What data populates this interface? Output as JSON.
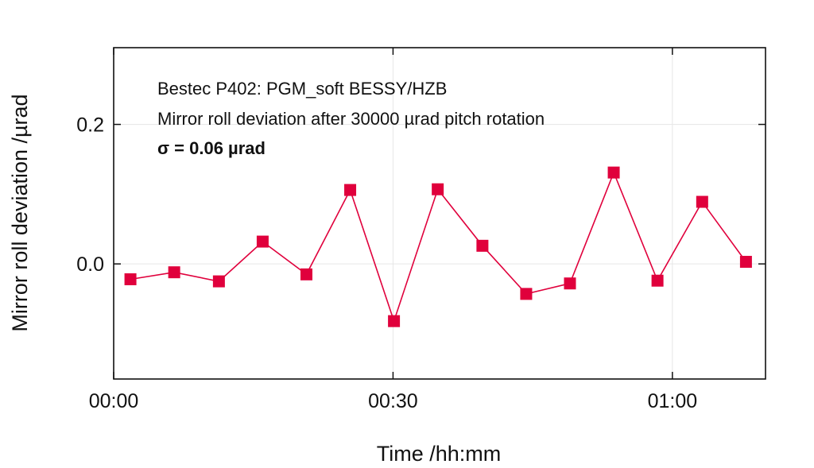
{
  "chart_data": {
    "type": "line",
    "xlabel": "Time /hh:mm",
    "ylabel": "Mirror roll deviation /µrad",
    "x_unit": "minutes",
    "xlim": [
      0,
      70
    ],
    "ylim": [
      -0.165,
      0.31
    ],
    "x_ticks": [
      {
        "value": 0,
        "label": "00:00"
      },
      {
        "value": 30,
        "label": "00:30"
      },
      {
        "value": 60,
        "label": "01:00"
      }
    ],
    "y_ticks": [
      {
        "value": 0.0,
        "label": "0.0"
      },
      {
        "value": 0.2,
        "label": "0.2"
      }
    ],
    "grid": true,
    "annotations": [
      "Bestec P402: PGM_soft BESSY/HZB",
      "Mirror roll deviation after 30000 µrad pitch rotation",
      "σ = 0.06 µrad"
    ],
    "series": [
      {
        "color": "#e0003c",
        "marker": "square",
        "x": [
          1.8,
          6.5,
          11.3,
          16.0,
          20.7,
          25.4,
          30.1,
          34.8,
          39.6,
          44.3,
          49.0,
          53.7,
          58.4,
          63.2,
          67.9
        ],
        "y": [
          -0.022,
          -0.012,
          -0.025,
          0.032,
          -0.015,
          0.106,
          -0.082,
          0.107,
          0.026,
          -0.043,
          -0.028,
          0.131,
          -0.024,
          0.089,
          0.003
        ]
      }
    ]
  }
}
